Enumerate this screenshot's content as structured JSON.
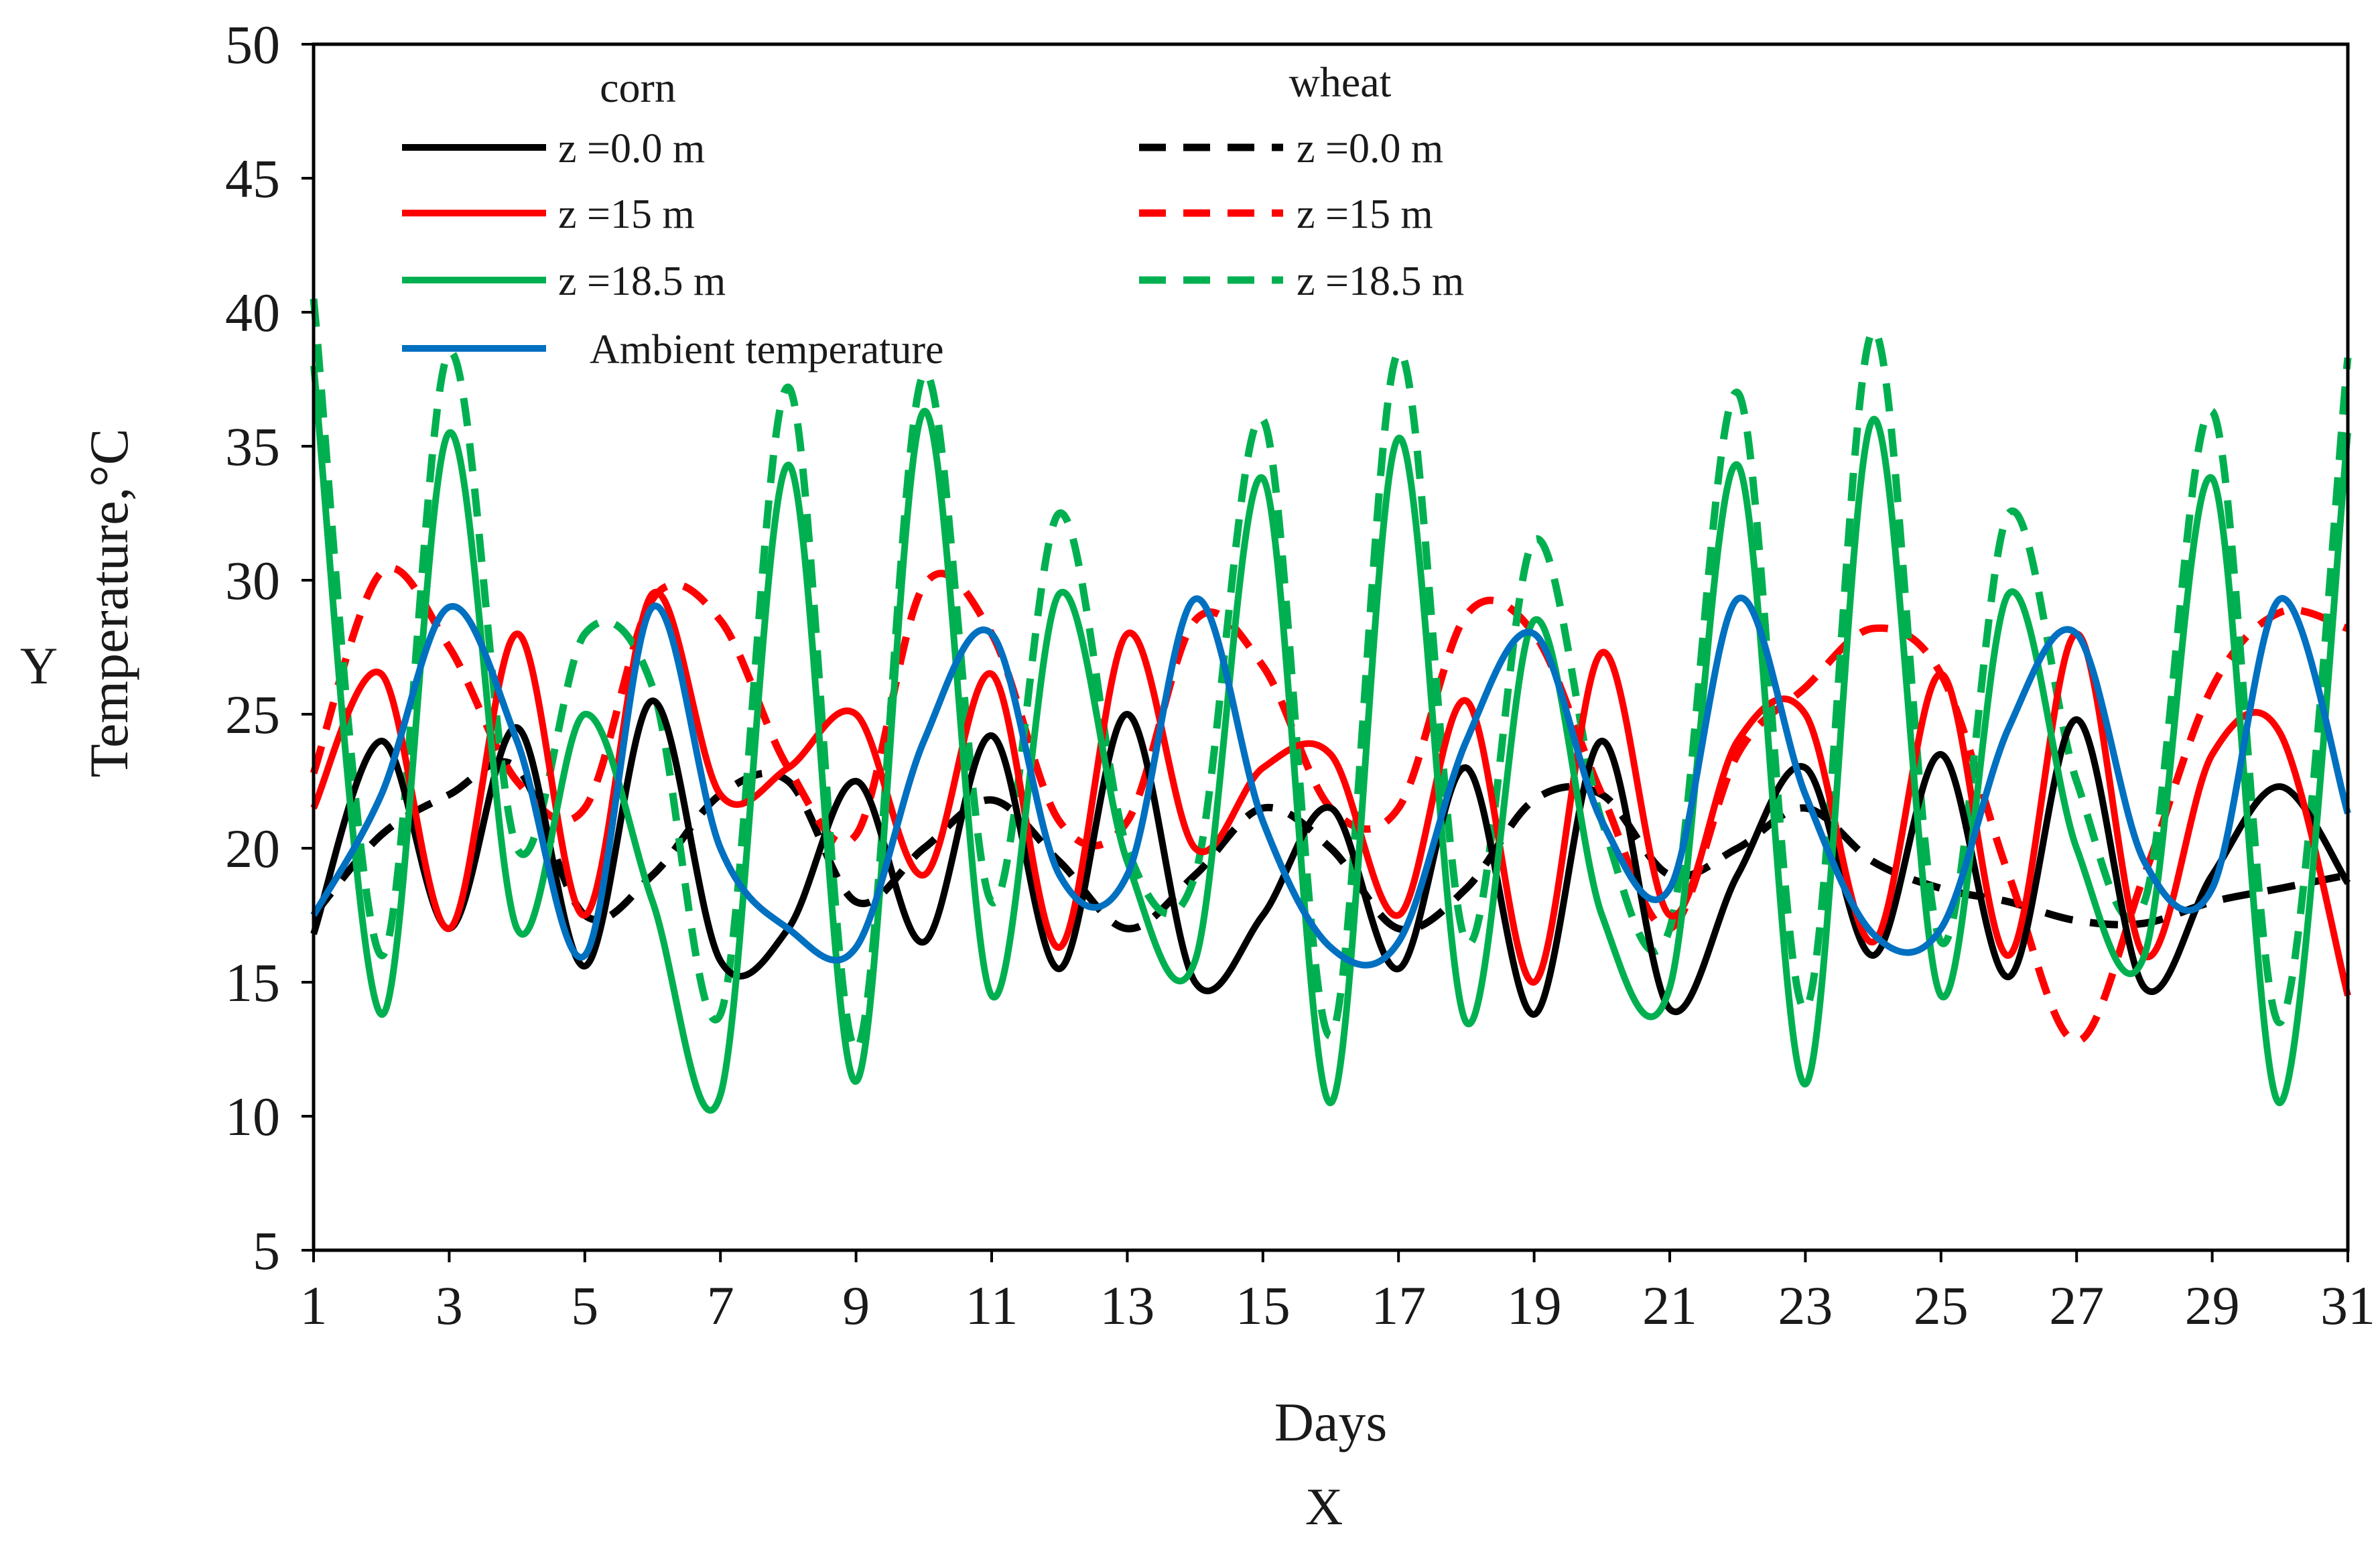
{
  "chart_data": {
    "type": "line",
    "xlabel": "Days",
    "ylabel": "Temperature,°C",
    "x_axis_letter": "X",
    "y_axis_letter": "Y",
    "xlim": [
      1,
      31
    ],
    "ylim": [
      5,
      50
    ],
    "x_ticks": [
      "1",
      "3",
      "5",
      "7",
      "9",
      "11",
      "13",
      "15",
      "17",
      "19",
      "21",
      "23",
      "25",
      "27",
      "29",
      "31"
    ],
    "y_ticks": [
      "5",
      "10",
      "15",
      "20",
      "25",
      "30",
      "35",
      "40",
      "45",
      "50"
    ],
    "grid": false,
    "legend_position": "top-left",
    "legend_group_labels": [
      "corn",
      "wheat"
    ],
    "series": [
      {
        "name": "z =0.0 m",
        "group": "corn",
        "color": "#000000",
        "dash": "solid",
        "points": [
          [
            1,
            16.8
          ],
          [
            2,
            24
          ],
          [
            3,
            17
          ],
          [
            4,
            24.5
          ],
          [
            5,
            15.6
          ],
          [
            6,
            25.5
          ],
          [
            7,
            15.8
          ],
          [
            8,
            17
          ],
          [
            9,
            22.5
          ],
          [
            10,
            16.5
          ],
          [
            11,
            24.2
          ],
          [
            12,
            15.5
          ],
          [
            13,
            25
          ],
          [
            14,
            15
          ],
          [
            15,
            17.5
          ],
          [
            16,
            21.5
          ],
          [
            17,
            15.5
          ],
          [
            18,
            23
          ],
          [
            19,
            13.8
          ],
          [
            20,
            24
          ],
          [
            21,
            14
          ],
          [
            22,
            19
          ],
          [
            23,
            23
          ],
          [
            24,
            16
          ],
          [
            25,
            23.5
          ],
          [
            26,
            15.2
          ],
          [
            27,
            24.8
          ],
          [
            28,
            14.8
          ],
          [
            29,
            19
          ],
          [
            30,
            22.3
          ],
          [
            31,
            18.7
          ]
        ]
      },
      {
        "name": "z =15 m",
        "group": "corn",
        "color": "#ff0000",
        "dash": "solid",
        "points": [
          [
            1,
            21.5
          ],
          [
            2,
            26.5
          ],
          [
            3,
            17
          ],
          [
            4,
            28
          ],
          [
            5,
            17.5
          ],
          [
            6,
            29.5
          ],
          [
            7,
            22
          ],
          [
            8,
            23
          ],
          [
            9,
            25
          ],
          [
            10,
            19
          ],
          [
            11,
            26.5
          ],
          [
            12,
            16.3
          ],
          [
            13,
            28
          ],
          [
            14,
            20
          ],
          [
            15,
            23
          ],
          [
            16,
            23.5
          ],
          [
            17,
            17.5
          ],
          [
            18,
            25.5
          ],
          [
            19,
            15
          ],
          [
            20,
            27.3
          ],
          [
            21,
            17.5
          ],
          [
            22,
            24
          ],
          [
            23,
            25
          ],
          [
            24,
            16.5
          ],
          [
            25,
            26.5
          ],
          [
            26,
            16
          ],
          [
            27,
            28
          ],
          [
            28,
            16
          ],
          [
            29,
            23.5
          ],
          [
            30,
            24.3
          ],
          [
            31,
            14.5
          ]
        ]
      },
      {
        "name": "z =18.5 m",
        "group": "corn",
        "color": "#00b050",
        "dash": "solid",
        "points": [
          [
            1,
            38
          ],
          [
            2,
            13.8
          ],
          [
            3,
            35.5
          ],
          [
            4,
            17
          ],
          [
            5,
            25
          ],
          [
            6,
            18
          ],
          [
            7,
            10.8
          ],
          [
            8,
            34.3
          ],
          [
            9,
            11.3
          ],
          [
            10,
            36.3
          ],
          [
            11,
            14.5
          ],
          [
            12,
            29.5
          ],
          [
            13,
            19.5
          ],
          [
            14,
            15.8
          ],
          [
            15,
            33.8
          ],
          [
            16,
            10.5
          ],
          [
            17,
            35.3
          ],
          [
            18,
            13.5
          ],
          [
            19,
            28.5
          ],
          [
            20,
            17.5
          ],
          [
            21,
            14.8
          ],
          [
            22,
            34.3
          ],
          [
            23,
            11.2
          ],
          [
            24,
            36
          ],
          [
            25,
            14.5
          ],
          [
            26,
            29.5
          ],
          [
            27,
            20
          ],
          [
            28,
            16
          ],
          [
            29,
            33.8
          ],
          [
            30,
            10.5
          ],
          [
            31,
            35.5
          ]
        ]
      },
      {
        "name": "z =0.0 m",
        "group": "wheat",
        "color": "#000000",
        "dash": "dashed",
        "points": [
          [
            1,
            17.5
          ],
          [
            2,
            20.5
          ],
          [
            3,
            22
          ],
          [
            4,
            23
          ],
          [
            5,
            17.5
          ],
          [
            6,
            19
          ],
          [
            7,
            22
          ],
          [
            8,
            22.5
          ],
          [
            9,
            18
          ],
          [
            10,
            20
          ],
          [
            11,
            21.8
          ],
          [
            12,
            19.5
          ],
          [
            13,
            17
          ],
          [
            14,
            19
          ],
          [
            15,
            21.5
          ],
          [
            16,
            20
          ],
          [
            17,
            17
          ],
          [
            18,
            18.5
          ],
          [
            19,
            21.8
          ],
          [
            20,
            22
          ],
          [
            21,
            19
          ],
          [
            22,
            20
          ],
          [
            23,
            21.5
          ],
          [
            24,
            19.5
          ],
          [
            25,
            18.5
          ],
          [
            26,
            18
          ],
          [
            27,
            17.3
          ],
          [
            28,
            17.2
          ],
          [
            29,
            18
          ],
          [
            30,
            18.5
          ],
          [
            31,
            19
          ]
        ]
      },
      {
        "name": "z =15 m",
        "group": "wheat",
        "color": "#ff0000",
        "dash": "dashed",
        "points": [
          [
            1,
            22.8
          ],
          [
            2,
            30.3
          ],
          [
            3,
            27.5
          ],
          [
            4,
            22.5
          ],
          [
            5,
            21.5
          ],
          [
            6,
            29.3
          ],
          [
            7,
            28.5
          ],
          [
            8,
            23
          ],
          [
            9,
            20.5
          ],
          [
            10,
            29.8
          ],
          [
            11,
            28
          ],
          [
            12,
            21
          ],
          [
            13,
            21
          ],
          [
            14,
            28.5
          ],
          [
            15,
            26.8
          ],
          [
            16,
            21.5
          ],
          [
            17,
            21.5
          ],
          [
            18,
            28.7
          ],
          [
            19,
            28
          ],
          [
            20,
            22
          ],
          [
            21,
            17
          ],
          [
            22,
            23.5
          ],
          [
            23,
            26
          ],
          [
            24,
            28.2
          ],
          [
            25,
            26.5
          ],
          [
            26,
            19
          ],
          [
            27,
            12.8
          ],
          [
            28,
            19
          ],
          [
            29,
            26
          ],
          [
            30,
            28.8
          ],
          [
            31,
            28.2
          ]
        ]
      },
      {
        "name": "z =18.5 m",
        "group": "wheat",
        "color": "#00b050",
        "dash": "dashed",
        "points": [
          [
            1,
            40.5
          ],
          [
            2,
            16
          ],
          [
            3,
            38.5
          ],
          [
            4,
            20
          ],
          [
            5,
            28
          ],
          [
            6,
            26
          ],
          [
            7,
            13.8
          ],
          [
            8,
            37.2
          ],
          [
            9,
            12.5
          ],
          [
            10,
            37.7
          ],
          [
            11,
            18
          ],
          [
            12,
            32.5
          ],
          [
            13,
            20
          ],
          [
            14,
            19
          ],
          [
            15,
            36
          ],
          [
            16,
            13
          ],
          [
            17,
            38.5
          ],
          [
            18,
            16.5
          ],
          [
            19,
            31.5
          ],
          [
            20,
            21
          ],
          [
            21,
            17
          ],
          [
            22,
            37
          ],
          [
            23,
            14
          ],
          [
            24,
            39.3
          ],
          [
            25,
            16.5
          ],
          [
            26,
            32.5
          ],
          [
            27,
            22.5
          ],
          [
            28,
            18
          ],
          [
            29,
            36.3
          ],
          [
            30,
            13.5
          ],
          [
            31,
            38.3
          ]
        ]
      },
      {
        "name": "Ambient temperature",
        "group": "",
        "color": "#0070c0",
        "dash": "solid",
        "points": [
          [
            1,
            17.5
          ],
          [
            2,
            22
          ],
          [
            3,
            29
          ],
          [
            4,
            24
          ],
          [
            5,
            16
          ],
          [
            6,
            29
          ],
          [
            7,
            20
          ],
          [
            8,
            17
          ],
          [
            9,
            16.3
          ],
          [
            10,
            24
          ],
          [
            11,
            28
          ],
          [
            12,
            19
          ],
          [
            13,
            19
          ],
          [
            14,
            29.3
          ],
          [
            15,
            21
          ],
          [
            16,
            16.3
          ],
          [
            17,
            16.5
          ],
          [
            18,
            24
          ],
          [
            19,
            28
          ],
          [
            20,
            21
          ],
          [
            21,
            18.5
          ],
          [
            22,
            29.3
          ],
          [
            23,
            22
          ],
          [
            24,
            16.8
          ],
          [
            25,
            17
          ],
          [
            26,
            24.5
          ],
          [
            27,
            28
          ],
          [
            28,
            19.5
          ],
          [
            29,
            18.5
          ],
          [
            30,
            29.3
          ],
          [
            31,
            21.3
          ]
        ]
      }
    ]
  }
}
